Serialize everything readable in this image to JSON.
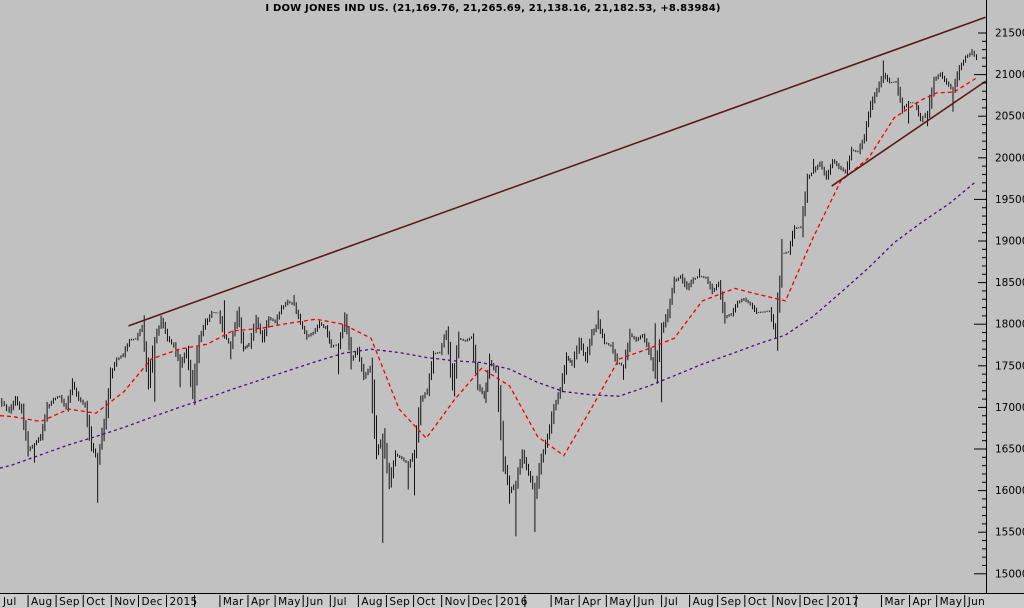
{
  "window": {
    "title": "I DOW JONES IND US. (21,169.76, 21,265.69, 21,138.16, 21,182.53, +8.83984)"
  },
  "colors": {
    "background": "#c1c1c1",
    "label_strip": "#cbcbcb",
    "axis": "#000000",
    "bars": "#000000",
    "ma_fast": "#f20000",
    "ma_slow": "#4b0a82",
    "trendline": "#5a1919",
    "text": "#000000"
  },
  "chart_data": {
    "type": "hlc-bars",
    "title": "I DOW JONES IND US. (21,169.76, 21,265.69, 21,138.16, 21,182.53, +8.83984)",
    "symbol": "DOW JONES IND US.",
    "quote": {
      "open": "21,169.76",
      "high": "21,265.69",
      "low": "21,138.16",
      "close": "21,182.53",
      "change": "+8.83984"
    },
    "grid": false,
    "legend_position": "none",
    "y_axis": {
      "side": "right",
      "min": 15000,
      "max": 21500,
      "major_step": 500,
      "minor_step": 100,
      "tick_labels": [
        "21500",
        "21000",
        "20500",
        "20000",
        "19500",
        "19000",
        "18500",
        "18000",
        "17500",
        "17000",
        "16500",
        "16000",
        "15500",
        "15000"
      ]
    },
    "x_axis": {
      "start_month": "2014-07",
      "labels": [
        "Jul",
        "Aug",
        "Sep",
        "Oct",
        "Nov",
        "Dec",
        "2015",
        "",
        "Mar",
        "Apr",
        "May",
        "Jun",
        "Jul",
        "Aug",
        "Sep",
        "Oct",
        "Nov",
        "Dec",
        "2016",
        "",
        "Mar",
        "Apr",
        "May",
        "Jun",
        "Jul",
        "Aug",
        "Sep",
        "Oct",
        "Nov",
        "Dec",
        "2017",
        "",
        "Mar",
        "Apr",
        "May",
        "Jun"
      ]
    },
    "price_weekly": [
      [
        "2014-07-03",
        17068,
        0,
        0
      ],
      [
        "2014-07-11",
        16944,
        0,
        0
      ],
      [
        "2014-07-18",
        17100,
        0,
        0
      ],
      [
        "2014-07-25",
        16960,
        0,
        0
      ],
      [
        "2014-08-01",
        16493,
        0,
        0
      ],
      [
        "2014-08-08",
        16554,
        16334,
        0
      ],
      [
        "2014-08-15",
        16663,
        0,
        0
      ],
      [
        "2014-08-22",
        17001,
        0,
        0
      ],
      [
        "2014-08-29",
        17098,
        0,
        0
      ],
      [
        "2014-09-05",
        17137,
        0,
        0
      ],
      [
        "2014-09-12",
        16987,
        0,
        0
      ],
      [
        "2014-09-19",
        17280,
        0,
        17350
      ],
      [
        "2014-09-26",
        17113,
        0,
        0
      ],
      [
        "2014-10-03",
        17010,
        0,
        0
      ],
      [
        "2014-10-10",
        16544,
        0,
        0
      ],
      [
        "2014-10-17",
        16380,
        15855,
        0
      ],
      [
        "2014-10-24",
        16805,
        0,
        0
      ],
      [
        "2014-10-31",
        17390,
        0,
        0
      ],
      [
        "2014-11-07",
        17574,
        0,
        0
      ],
      [
        "2014-11-14",
        17635,
        0,
        0
      ],
      [
        "2014-11-21",
        17810,
        0,
        0
      ],
      [
        "2014-11-28",
        17828,
        0,
        0
      ],
      [
        "2014-12-05",
        17959,
        0,
        17991
      ],
      [
        "2014-12-12",
        17281,
        0,
        0
      ],
      [
        "2014-12-19",
        17805,
        17067,
        0
      ],
      [
        "2014-12-26",
        18054,
        0,
        18103
      ],
      [
        "2015-01-02",
        17833,
        0,
        0
      ],
      [
        "2015-01-09",
        17737,
        0,
        0
      ],
      [
        "2015-01-16",
        17511,
        17243,
        0
      ],
      [
        "2015-01-23",
        17673,
        0,
        0
      ],
      [
        "2015-01-30",
        17165,
        0,
        0
      ],
      [
        "2015-02-06",
        17824,
        0,
        0
      ],
      [
        "2015-02-13",
        18019,
        0,
        0
      ],
      [
        "2015-02-20",
        18140,
        0,
        0
      ],
      [
        "2015-02-27",
        18133,
        0,
        0
      ],
      [
        "2015-03-06",
        17857,
        0,
        18288
      ],
      [
        "2015-03-13",
        17749,
        17579,
        0
      ],
      [
        "2015-03-20",
        18128,
        0,
        0
      ],
      [
        "2015-03-27",
        17713,
        0,
        0
      ],
      [
        "2015-04-02",
        17763,
        0,
        0
      ],
      [
        "2015-04-10",
        18058,
        0,
        0
      ],
      [
        "2015-04-17",
        17826,
        0,
        0
      ],
      [
        "2015-04-24",
        18080,
        0,
        0
      ],
      [
        "2015-05-01",
        18024,
        0,
        0
      ],
      [
        "2015-05-08",
        18191,
        0,
        0
      ],
      [
        "2015-05-15",
        18272,
        0,
        0
      ],
      [
        "2015-05-22",
        18232,
        0,
        18351
      ],
      [
        "2015-05-29",
        18011,
        0,
        0
      ],
      [
        "2015-06-05",
        17849,
        0,
        0
      ],
      [
        "2015-06-12",
        17899,
        0,
        0
      ],
      [
        "2015-06-19",
        18014,
        0,
        0
      ],
      [
        "2015-06-26",
        17947,
        0,
        0
      ],
      [
        "2015-07-02",
        17730,
        0,
        0
      ],
      [
        "2015-07-10",
        17760,
        17399,
        0
      ],
      [
        "2015-07-17",
        18086,
        0,
        0
      ],
      [
        "2015-07-24",
        17569,
        0,
        0
      ],
      [
        "2015-07-31",
        17690,
        0,
        0
      ],
      [
        "2015-08-07",
        17373,
        0,
        0
      ],
      [
        "2015-08-14",
        17477,
        0,
        0
      ],
      [
        "2015-08-21",
        16460,
        0,
        0
      ],
      [
        "2015-08-28",
        16643,
        15370,
        0
      ],
      [
        "2015-09-04",
        16102,
        0,
        0
      ],
      [
        "2015-09-11",
        16433,
        0,
        0
      ],
      [
        "2015-09-18",
        16385,
        0,
        0
      ],
      [
        "2015-09-25",
        16315,
        16013,
        0
      ],
      [
        "2015-10-02",
        16472,
        15942,
        0
      ],
      [
        "2015-10-09",
        17084,
        0,
        0
      ],
      [
        "2015-10-16",
        17216,
        0,
        0
      ],
      [
        "2015-10-23",
        17647,
        0,
        0
      ],
      [
        "2015-10-30",
        17664,
        0,
        0
      ],
      [
        "2015-11-06",
        17910,
        0,
        0
      ],
      [
        "2015-11-13",
        17245,
        0,
        0
      ],
      [
        "2015-11-20",
        17824,
        0,
        0
      ],
      [
        "2015-11-27",
        17798,
        0,
        0
      ],
      [
        "2015-12-04",
        17848,
        0,
        0
      ],
      [
        "2015-12-11",
        17265,
        0,
        0
      ],
      [
        "2015-12-18",
        17128,
        0,
        0
      ],
      [
        "2015-12-24",
        17552,
        0,
        0
      ],
      [
        "2015-12-31",
        17425,
        0,
        0
      ],
      [
        "2016-01-08",
        16346,
        0,
        0
      ],
      [
        "2016-01-15",
        15988,
        15842,
        0
      ],
      [
        "2016-01-22",
        16094,
        15450,
        0
      ],
      [
        "2016-01-29",
        16466,
        0,
        0
      ],
      [
        "2016-02-05",
        16205,
        0,
        0
      ],
      [
        "2016-02-12",
        15973,
        15503,
        0
      ],
      [
        "2016-02-19",
        16392,
        0,
        0
      ],
      [
        "2016-02-26",
        16640,
        0,
        0
      ],
      [
        "2016-03-04",
        17007,
        0,
        0
      ],
      [
        "2016-03-11",
        17213,
        0,
        0
      ],
      [
        "2016-03-18",
        17602,
        0,
        0
      ],
      [
        "2016-03-24",
        17516,
        0,
        0
      ],
      [
        "2016-04-01",
        17793,
        0,
        0
      ],
      [
        "2016-04-08",
        17577,
        0,
        0
      ],
      [
        "2016-04-15",
        17897,
        0,
        0
      ],
      [
        "2016-04-22",
        18004,
        0,
        18167
      ],
      [
        "2016-04-29",
        17774,
        0,
        0
      ],
      [
        "2016-05-06",
        17741,
        0,
        0
      ],
      [
        "2016-05-13",
        17535,
        0,
        0
      ],
      [
        "2016-05-20",
        17500,
        17331,
        0
      ],
      [
        "2016-05-27",
        17873,
        0,
        0
      ],
      [
        "2016-06-03",
        17807,
        0,
        0
      ],
      [
        "2016-06-10",
        17865,
        0,
        0
      ],
      [
        "2016-06-17",
        17675,
        0,
        0
      ],
      [
        "2016-06-24",
        17400,
        0,
        18011
      ],
      [
        "2016-07-01",
        17930,
        17063,
        0
      ],
      [
        "2016-07-08",
        18147,
        0,
        0
      ],
      [
        "2016-07-15",
        18517,
        0,
        0
      ],
      [
        "2016-07-22",
        18571,
        0,
        0
      ],
      [
        "2016-07-29",
        18432,
        0,
        0
      ],
      [
        "2016-08-05",
        18543,
        0,
        0
      ],
      [
        "2016-08-12",
        18576,
        0,
        18668
      ],
      [
        "2016-08-19",
        18553,
        0,
        0
      ],
      [
        "2016-08-26",
        18395,
        0,
        0
      ],
      [
        "2016-09-02",
        18492,
        0,
        0
      ],
      [
        "2016-09-09",
        18085,
        0,
        0
      ],
      [
        "2016-09-16",
        18123,
        0,
        0
      ],
      [
        "2016-09-23",
        18261,
        0,
        0
      ],
      [
        "2016-09-30",
        18308,
        0,
        0
      ],
      [
        "2016-10-07",
        18240,
        0,
        0
      ],
      [
        "2016-10-14",
        18138,
        0,
        0
      ],
      [
        "2016-10-21",
        18146,
        0,
        0
      ],
      [
        "2016-10-28",
        18161,
        0,
        0
      ],
      [
        "2016-11-04",
        17888,
        17883,
        0
      ],
      [
        "2016-11-11",
        18848,
        0,
        0
      ],
      [
        "2016-11-18",
        18868,
        0,
        0
      ],
      [
        "2016-11-25",
        19152,
        0,
        0
      ],
      [
        "2016-12-02",
        19170,
        0,
        0
      ],
      [
        "2016-12-09",
        19757,
        0,
        0
      ],
      [
        "2016-12-16",
        19843,
        0,
        19987
      ],
      [
        "2016-12-23",
        19934,
        0,
        0
      ],
      [
        "2016-12-30",
        19763,
        0,
        0
      ],
      [
        "2017-01-06",
        19964,
        0,
        0
      ],
      [
        "2017-01-13",
        19886,
        0,
        0
      ],
      [
        "2017-01-20",
        19827,
        0,
        0
      ],
      [
        "2017-01-27",
        20094,
        0,
        0
      ],
      [
        "2017-02-03",
        20071,
        0,
        0
      ],
      [
        "2017-02-10",
        20269,
        0,
        0
      ],
      [
        "2017-02-17",
        20624,
        0,
        0
      ],
      [
        "2017-02-24",
        20822,
        0,
        0
      ],
      [
        "2017-03-03",
        21006,
        0,
        21169
      ],
      [
        "2017-03-10",
        20903,
        0,
        0
      ],
      [
        "2017-03-17",
        20915,
        0,
        0
      ],
      [
        "2017-03-24",
        20597,
        0,
        0
      ],
      [
        "2017-03-31",
        20663,
        20412,
        0
      ],
      [
        "2017-04-07",
        20656,
        0,
        0
      ],
      [
        "2017-04-13",
        20453,
        0,
        0
      ],
      [
        "2017-04-21",
        20548,
        20380,
        0
      ],
      [
        "2017-04-28",
        20940,
        0,
        0
      ],
      [
        "2017-05-05",
        21007,
        0,
        0
      ],
      [
        "2017-05-12",
        20896,
        0,
        0
      ],
      [
        "2017-05-19",
        20805,
        20553,
        0
      ],
      [
        "2017-05-26",
        21080,
        0,
        0
      ],
      [
        "2017-06-02",
        21206,
        0,
        0
      ],
      [
        "2017-06-09",
        21272,
        0,
        21306
      ],
      [
        "2017-06-14",
        21183,
        0,
        0
      ]
    ],
    "ma_fast_points": [
      [
        "2014-07-01",
        16900
      ],
      [
        "2014-07-15",
        16890
      ],
      [
        "2014-08-15",
        16830
      ],
      [
        "2014-09-15",
        16980
      ],
      [
        "2014-10-15",
        16930
      ],
      [
        "2014-11-15",
        17190
      ],
      [
        "2014-12-15",
        17580
      ],
      [
        "2015-01-15",
        17700
      ],
      [
        "2015-02-15",
        17760
      ],
      [
        "2015-03-15",
        17920
      ],
      [
        "2015-04-15",
        17950
      ],
      [
        "2015-05-15",
        18010
      ],
      [
        "2015-06-15",
        18060
      ],
      [
        "2015-07-15",
        18000
      ],
      [
        "2015-08-15",
        17830
      ],
      [
        "2015-09-15",
        16980
      ],
      [
        "2015-10-15",
        16630
      ],
      [
        "2015-11-15",
        17090
      ],
      [
        "2015-12-15",
        17470
      ],
      [
        "2016-01-15",
        17260
      ],
      [
        "2016-02-15",
        16650
      ],
      [
        "2016-03-15",
        16420
      ],
      [
        "2016-04-15",
        17000
      ],
      [
        "2016-05-15",
        17580
      ],
      [
        "2016-06-15",
        17700
      ],
      [
        "2016-07-15",
        17830
      ],
      [
        "2016-08-15",
        18280
      ],
      [
        "2016-09-20",
        18430
      ],
      [
        "2016-10-15",
        18360
      ],
      [
        "2016-11-15",
        18280
      ],
      [
        "2016-12-15",
        19030
      ],
      [
        "2017-01-15",
        19720
      ],
      [
        "2017-02-15",
        20000
      ],
      [
        "2017-03-15",
        20480
      ],
      [
        "2017-04-15",
        20700
      ],
      [
        "2017-05-01",
        20780
      ],
      [
        "2017-05-20",
        20790
      ],
      [
        "2017-06-14",
        20960
      ]
    ],
    "ma_slow_points": [
      [
        "2014-07-01",
        16270
      ],
      [
        "2014-07-15",
        16310
      ],
      [
        "2014-08-15",
        16430
      ],
      [
        "2014-09-15",
        16550
      ],
      [
        "2014-10-15",
        16650
      ],
      [
        "2014-11-15",
        16760
      ],
      [
        "2014-12-15",
        16880
      ],
      [
        "2015-01-15",
        17000
      ],
      [
        "2015-02-15",
        17110
      ],
      [
        "2015-03-15",
        17220
      ],
      [
        "2015-04-15",
        17330
      ],
      [
        "2015-05-15",
        17440
      ],
      [
        "2015-06-15",
        17550
      ],
      [
        "2015-07-15",
        17650
      ],
      [
        "2015-08-15",
        17700
      ],
      [
        "2015-09-15",
        17660
      ],
      [
        "2015-10-15",
        17600
      ],
      [
        "2015-11-15",
        17560
      ],
      [
        "2015-12-15",
        17540
      ],
      [
        "2016-01-15",
        17460
      ],
      [
        "2016-02-15",
        17300
      ],
      [
        "2016-03-15",
        17190
      ],
      [
        "2016-04-15",
        17150
      ],
      [
        "2016-05-15",
        17135
      ],
      [
        "2016-06-15",
        17250
      ],
      [
        "2016-07-15",
        17380
      ],
      [
        "2016-08-15",
        17520
      ],
      [
        "2016-09-15",
        17640
      ],
      [
        "2016-10-15",
        17760
      ],
      [
        "2016-11-15",
        17870
      ],
      [
        "2016-12-15",
        18090
      ],
      [
        "2017-01-15",
        18380
      ],
      [
        "2017-02-15",
        18680
      ],
      [
        "2017-03-15",
        18980
      ],
      [
        "2017-04-15",
        19230
      ],
      [
        "2017-05-15",
        19450
      ],
      [
        "2017-06-14",
        19720
      ]
    ],
    "trendlines": [
      {
        "from": [
          "2014-11-20",
          17980
        ],
        "to": [
          "2017-06-24",
          21690
        ]
      },
      {
        "from": [
          "2017-01-05",
          19660
        ],
        "to": [
          "2017-06-24",
          20920
        ]
      }
    ]
  }
}
